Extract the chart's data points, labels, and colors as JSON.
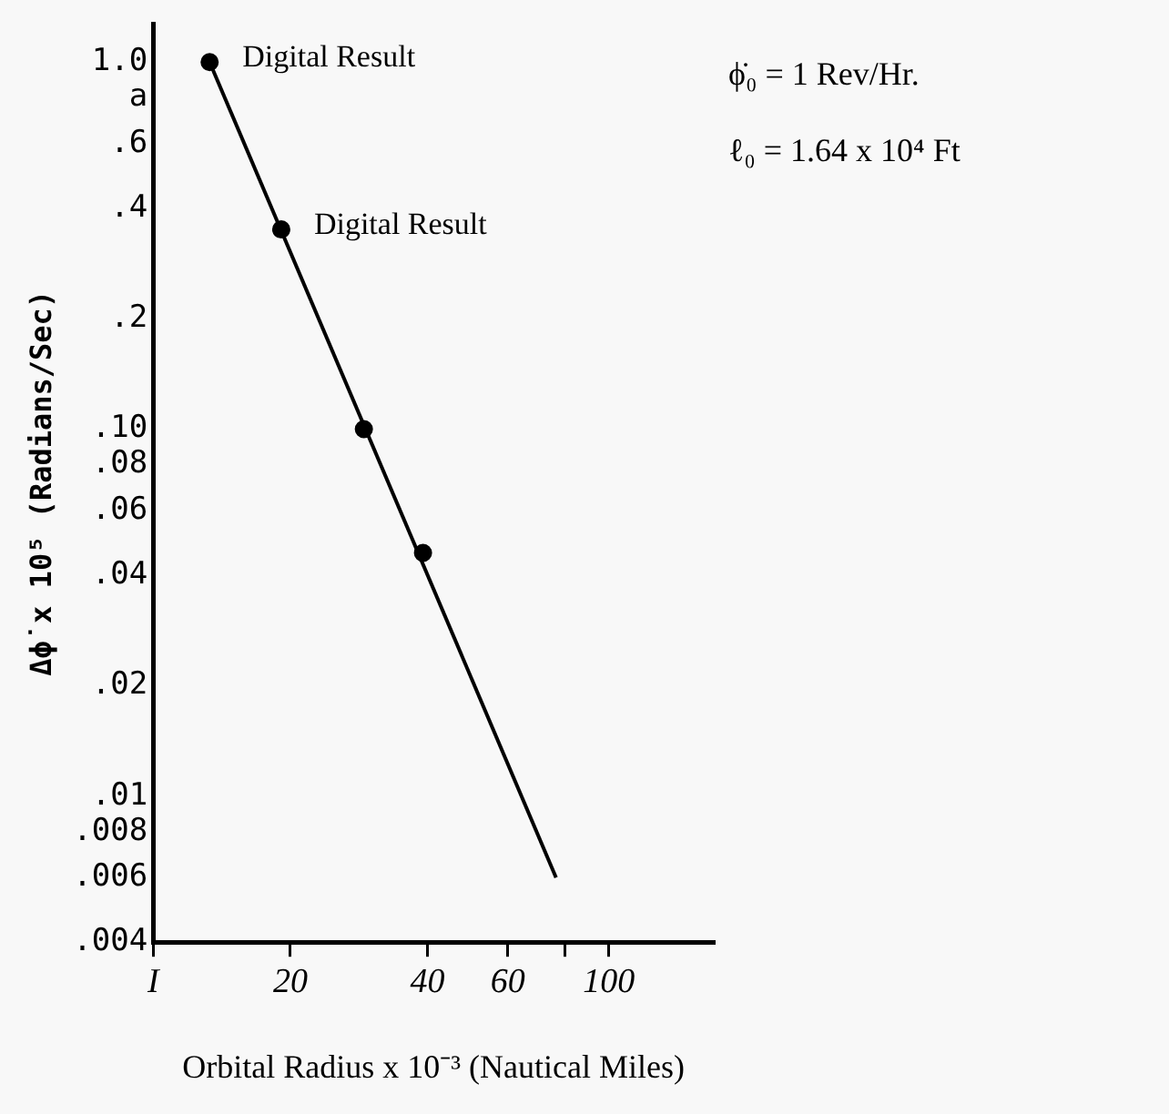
{
  "chart_data": {
    "type": "scatter",
    "xlabel": "Orbital Radius x 10⁻³ (Nautical Miles)",
    "ylabel": "Δϕ̇ x 10⁵ (Radians/Sec)",
    "log": "xy",
    "grid": false,
    "legend": false,
    "marker": "circle",
    "xlim": [
      10,
      170
    ],
    "xticks": [
      {
        "value": 10,
        "label": "I"
      },
      20,
      40,
      60,
      {
        "value": 80,
        "label": null
      },
      100
    ],
    "ylim": [
      0.004,
      1.27
    ],
    "yticks": [
      {
        "value": 1,
        "label": "1.0"
      },
      {
        "value": 0.8,
        "label": "a"
      },
      {
        "value": 0.6,
        "label": ".6"
      },
      {
        "value": 0.4,
        "label": ".4"
      },
      {
        "value": 0.2,
        "label": ".2"
      },
      {
        "value": 0.1,
        "label": ".10"
      },
      {
        "value": 0.08,
        "label": ".08"
      },
      {
        "value": 0.06,
        "label": ".06"
      },
      {
        "value": 0.04,
        "label": ".04"
      },
      {
        "value": 0.02,
        "label": ".02"
      },
      {
        "value": 0.01,
        "label": ".01"
      },
      {
        "value": 0.008,
        "label": ".008"
      },
      {
        "value": 0.006,
        "label": ".006"
      },
      {
        "value": 0.004,
        "label": ".004"
      }
    ],
    "series": [
      {
        "color": "#000000",
        "x": [
          13.3,
          19.1,
          29,
          39.1
        ],
        "values": [
          1.0,
          0.35,
          0.1,
          0.046
        ]
      },
      {
        "type": "line",
        "color": "#000000",
        "marker": "none",
        "x": [
          13.3,
          76.6
        ],
        "values": [
          1.0,
          0.006
        ]
      }
    ],
    "annotations": [
      {
        "text": "Digital Result",
        "x": 13.3,
        "y": 1.0
      },
      {
        "text": "Digital Result",
        "x": 19.1,
        "y": 0.35
      },
      "ϕ̇₀ = 1 Rev/Hr.",
      "ℓ₀ = 1.64 x 10⁴ Ft"
    ]
  }
}
